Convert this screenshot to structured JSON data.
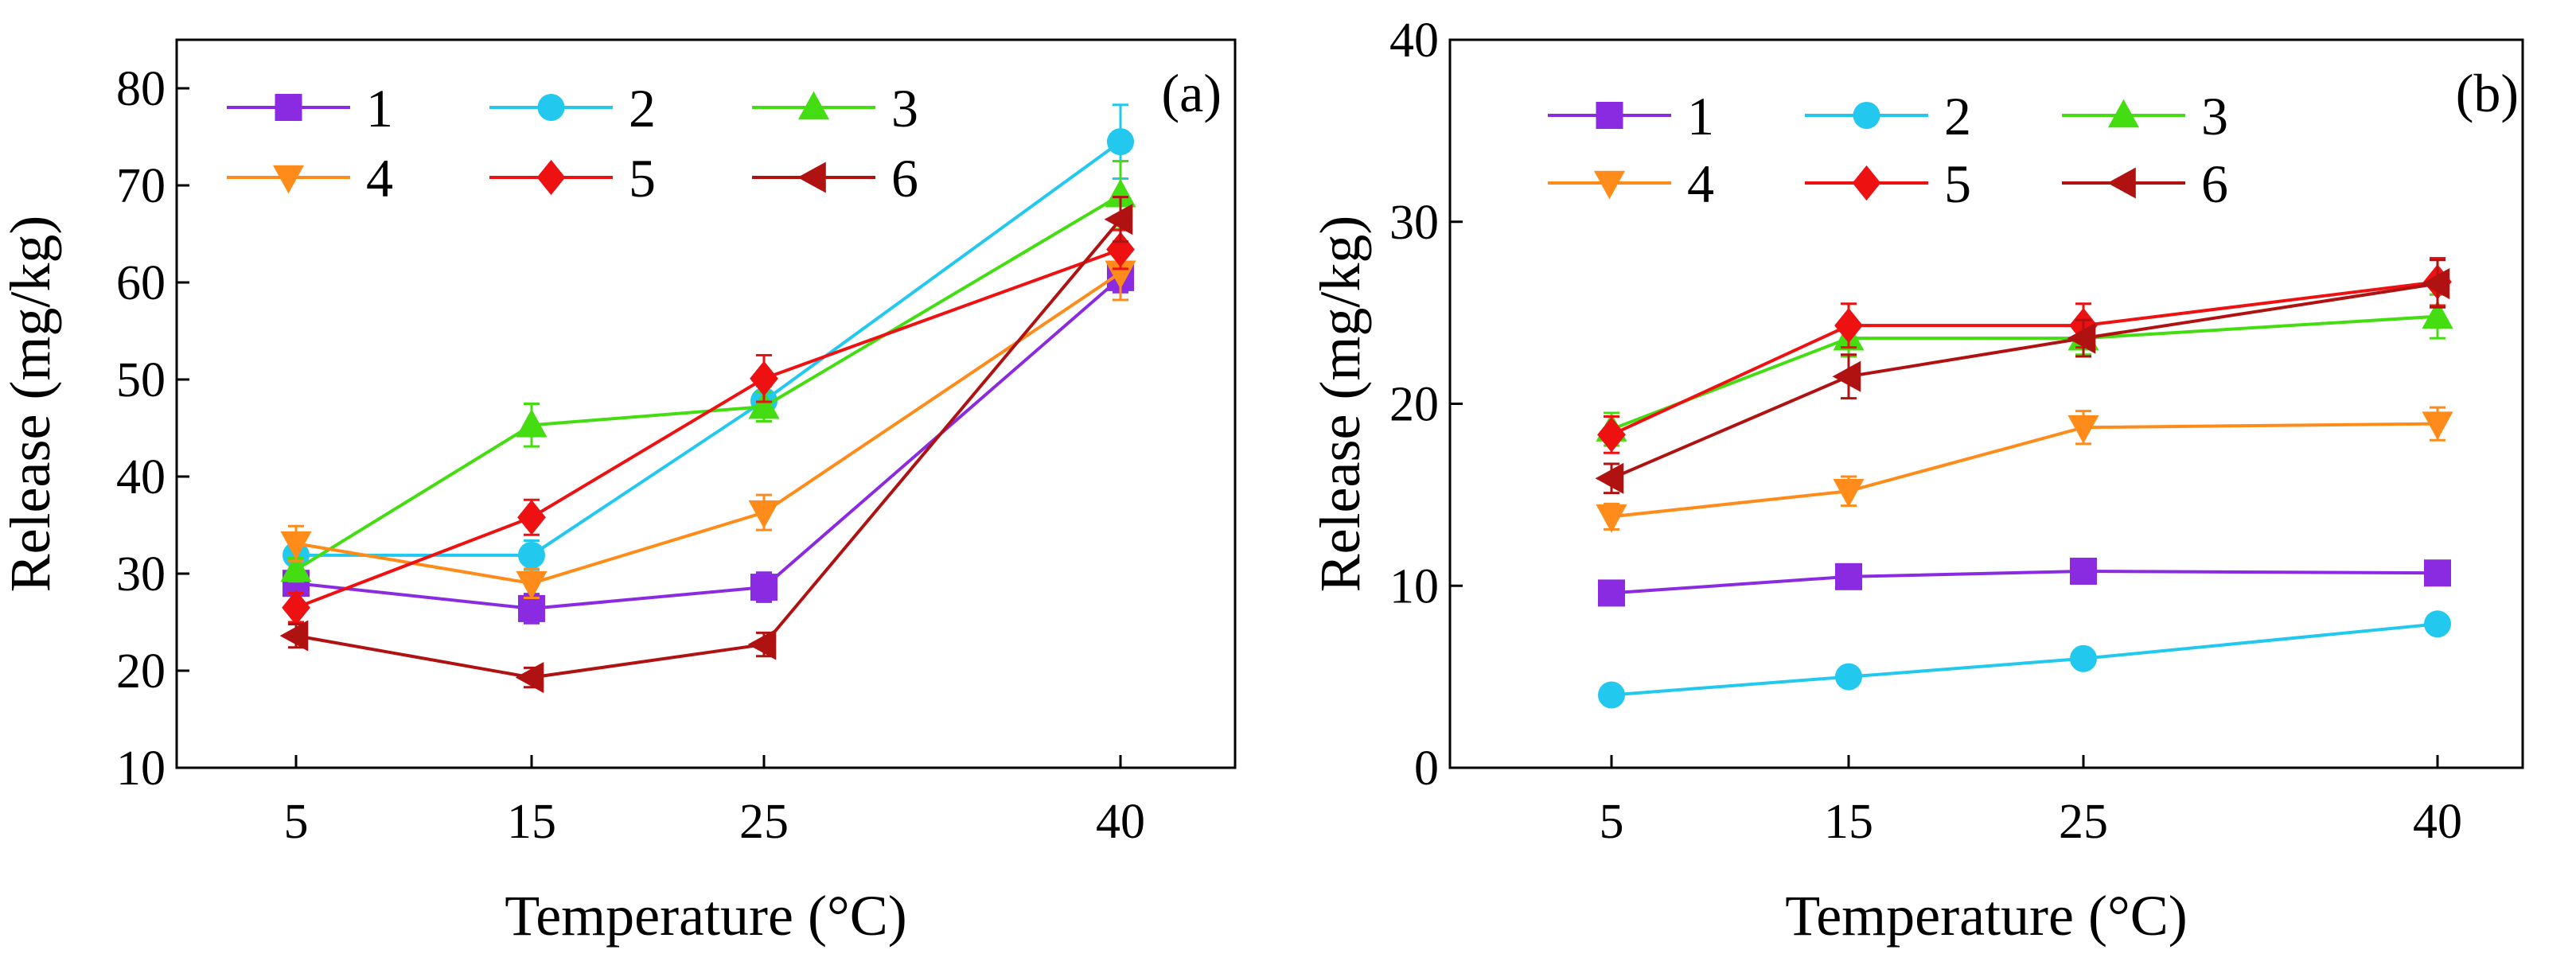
{
  "chart_data": [
    {
      "type": "line",
      "panel_label": "(a)",
      "xlabel": "Temperature (°C)",
      "ylabel": "Release (mg/kg)",
      "x": [
        5,
        15,
        25,
        40
      ],
      "x_tick_labels": [
        "5",
        "15",
        "25",
        "40"
      ],
      "ylim": [
        10,
        85
      ],
      "y_ticks": [
        10,
        20,
        30,
        40,
        50,
        60,
        70,
        80
      ],
      "legend_placement": "top-left",
      "series": [
        {
          "name": "1",
          "marker": "square",
          "color": "#8A2BE2",
          "values": [
            29.0,
            26.4,
            28.6,
            60.5
          ],
          "errors": [
            1.2,
            1.5,
            1.5,
            1.5
          ]
        },
        {
          "name": "2",
          "marker": "circle",
          "color": "#22C8EE",
          "values": [
            31.9,
            31.9,
            47.8,
            74.5
          ],
          "errors": [
            1.5,
            1.5,
            1.5,
            3.8
          ]
        },
        {
          "name": "3",
          "marker": "triangle-up",
          "color": "#44DD11",
          "values": [
            30.4,
            45.3,
            47.2,
            69.0
          ],
          "errors": [
            1.2,
            2.2,
            1.5,
            3.5
          ]
        },
        {
          "name": "4",
          "marker": "triangle-down",
          "color": "#FF8C1A",
          "values": [
            33.1,
            29.0,
            36.3,
            61.0
          ],
          "errors": [
            1.8,
            1.5,
            1.8,
            2.8
          ]
        },
        {
          "name": "5",
          "marker": "diamond",
          "color": "#EE1111",
          "values": [
            26.5,
            35.8,
            50.1,
            63.4
          ],
          "errors": [
            1.5,
            1.8,
            2.4,
            2.0
          ]
        },
        {
          "name": "6",
          "marker": "triangle-left",
          "color": "#B01212",
          "values": [
            23.6,
            19.3,
            22.7,
            66.5
          ],
          "errors": [
            1.2,
            1.0,
            1.2,
            2.3
          ]
        }
      ]
    },
    {
      "type": "line",
      "panel_label": "(b)",
      "xlabel": "Temperature (°C)",
      "ylabel": "Release (mg/kg)",
      "x": [
        5,
        15,
        25,
        40
      ],
      "x_tick_labels": [
        "5",
        "15",
        "25",
        "40"
      ],
      "ylim": [
        0,
        40
      ],
      "y_ticks": [
        0,
        10,
        20,
        30,
        40
      ],
      "legend_placement": "top-left",
      "series": [
        {
          "name": "1",
          "marker": "square",
          "color": "#8A2BE2",
          "values": [
            9.6,
            10.5,
            10.8,
            10.7
          ],
          "errors": [
            0.4,
            0.5,
            0.5,
            0.5
          ]
        },
        {
          "name": "2",
          "marker": "circle",
          "color": "#22C8EE",
          "values": [
            4.0,
            5.0,
            6.0,
            7.9
          ],
          "errors": [
            0.3,
            0.3,
            0.3,
            0.5
          ]
        },
        {
          "name": "3",
          "marker": "triangle-up",
          "color": "#44DD11",
          "values": [
            18.6,
            23.6,
            23.6,
            24.8
          ],
          "errors": [
            0.9,
            1.0,
            0.9,
            1.2
          ]
        },
        {
          "name": "4",
          "marker": "triangle-down",
          "color": "#FF8C1A",
          "values": [
            13.8,
            15.2,
            18.7,
            18.9
          ],
          "errors": [
            0.7,
            0.8,
            0.9,
            0.9
          ]
        },
        {
          "name": "5",
          "marker": "diamond",
          "color": "#EE1111",
          "values": [
            18.3,
            24.3,
            24.3,
            26.7
          ],
          "errors": [
            1.0,
            1.2,
            1.2,
            1.3
          ]
        },
        {
          "name": "6",
          "marker": "triangle-left",
          "color": "#B01212",
          "values": [
            15.9,
            21.5,
            23.6,
            26.6
          ],
          "errors": [
            0.8,
            1.2,
            1.0,
            1.3
          ]
        }
      ]
    }
  ]
}
